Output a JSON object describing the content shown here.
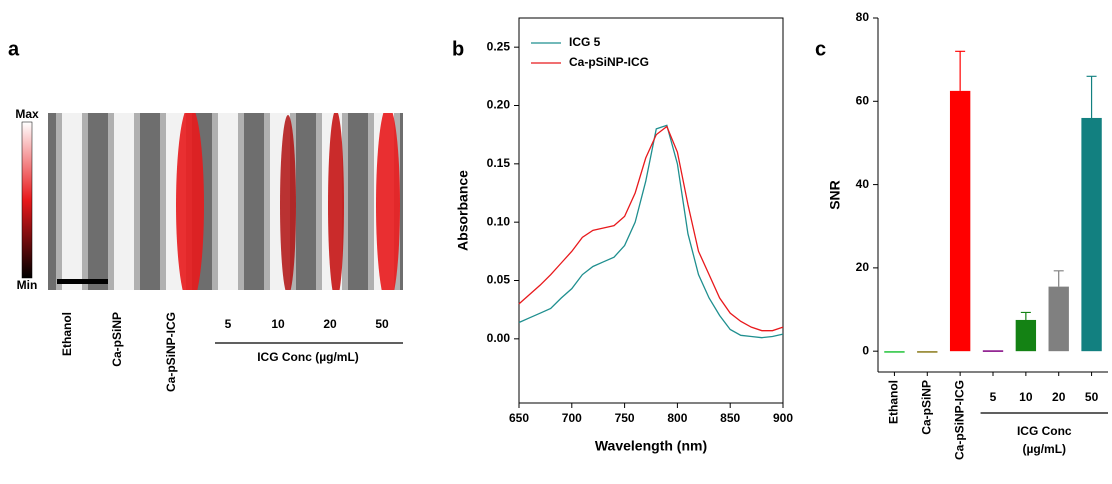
{
  "panel_a": {
    "panel_label": "a",
    "colorbar_max": "Max",
    "colorbar_min": "Min",
    "samples": [
      "Ethanol",
      "Ca-pSiNP",
      "Ca-pSiNP-ICG"
    ],
    "concentrations": [
      "5",
      "10",
      "20",
      "50"
    ],
    "group_label": "ICG Conc (µg/mL)"
  },
  "chart_data": [
    {
      "type": "line",
      "panel_label": "b",
      "xlabel": "Wavelength (nm)",
      "ylabel": "Absorbance",
      "x": [
        650,
        660,
        670,
        680,
        690,
        700,
        710,
        720,
        730,
        740,
        750,
        760,
        770,
        780,
        790,
        800,
        810,
        820,
        830,
        840,
        850,
        860,
        870,
        880,
        890,
        900
      ],
      "series": [
        {
          "name": "ICG 5",
          "color": "#1f8f8f",
          "values": [
            0.014,
            0.018,
            0.022,
            0.026,
            0.035,
            0.043,
            0.055,
            0.062,
            0.066,
            0.07,
            0.08,
            0.1,
            0.135,
            0.18,
            0.183,
            0.15,
            0.09,
            0.055,
            0.035,
            0.02,
            0.008,
            0.003,
            0.002,
            0.001,
            0.002,
            0.004
          ]
        },
        {
          "name": "Ca-pSiNP-ICG",
          "color": "#e8191c",
          "values": [
            0.03,
            0.038,
            0.046,
            0.055,
            0.065,
            0.075,
            0.087,
            0.093,
            0.095,
            0.097,
            0.105,
            0.125,
            0.155,
            0.175,
            0.182,
            0.16,
            0.115,
            0.075,
            0.055,
            0.035,
            0.022,
            0.015,
            0.01,
            0.007,
            0.007,
            0.01
          ]
        }
      ],
      "xlim": [
        650,
        900
      ],
      "xticks": [
        650,
        700,
        750,
        800,
        850,
        900
      ],
      "ylim": [
        -0.055,
        0.275
      ],
      "yticks": [
        {
          "value": 0,
          "label": "0.00"
        },
        {
          "value": 0.05,
          "label": "0.05"
        },
        {
          "value": 0.1,
          "label": "0.10"
        },
        {
          "value": 0.15,
          "label": "0.15"
        },
        {
          "value": 0.2,
          "label": "0.20"
        },
        {
          "value": 0.25,
          "label": "0.25"
        }
      ],
      "legend": "top-left"
    },
    {
      "type": "bar",
      "panel_label": "c",
      "ylabel": "SNR",
      "categories": [
        "Ethanol",
        "Ca-pSiNP",
        "Ca-pSiNP-ICG",
        "5",
        "10",
        "20",
        "50"
      ],
      "values": [
        0,
        0,
        62.5,
        0.2,
        7.5,
        15.5,
        56
      ],
      "errors": [
        0,
        0,
        9.5,
        0,
        1.8,
        3.8,
        10
      ],
      "colors": [
        "#22c33a",
        "#8a7a1a",
        "#ff0000",
        "#800080",
        "#148214",
        "#808080",
        "#128080"
      ],
      "group_label": [
        "ICG Conc",
        "(µg/mL)"
      ],
      "ylim": [
        -5,
        80
      ],
      "yticks": [
        0,
        20,
        40,
        60,
        80
      ]
    }
  ]
}
